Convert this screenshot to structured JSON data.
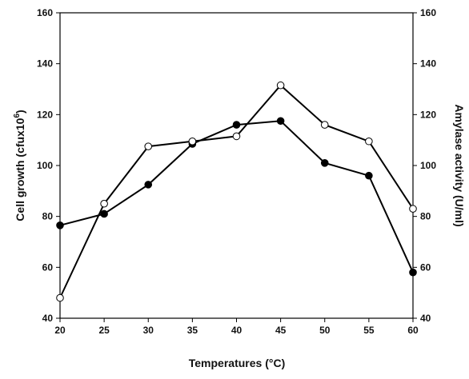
{
  "chart_data": {
    "type": "line",
    "xlabel": "Temperatures (°C)",
    "ylabel_left": "Cell growth (cfux10",
    "ylabel_left_sup": "6",
    "ylabel_left_tail": ")",
    "ylabel_right": "Amylase activity (U/ml)",
    "x": [
      20,
      25,
      30,
      35,
      40,
      45,
      50,
      55,
      60
    ],
    "xlim": [
      20,
      60
    ],
    "ylim": [
      40,
      160
    ],
    "yticks": [
      40,
      60,
      80,
      100,
      120,
      140,
      160
    ],
    "series": [
      {
        "marker": "filled-circle",
        "color": "#000000",
        "axis": "left",
        "values": [
          76.5,
          81,
          92.5,
          108.5,
          116,
          117.5,
          101,
          96,
          58
        ]
      },
      {
        "marker": "open-circle",
        "color": "#000000",
        "axis": "right",
        "values": [
          48,
          85,
          107.5,
          109.5,
          111.5,
          131.5,
          116,
          109.5,
          83
        ]
      }
    ],
    "grid": false,
    "legend": "none"
  }
}
